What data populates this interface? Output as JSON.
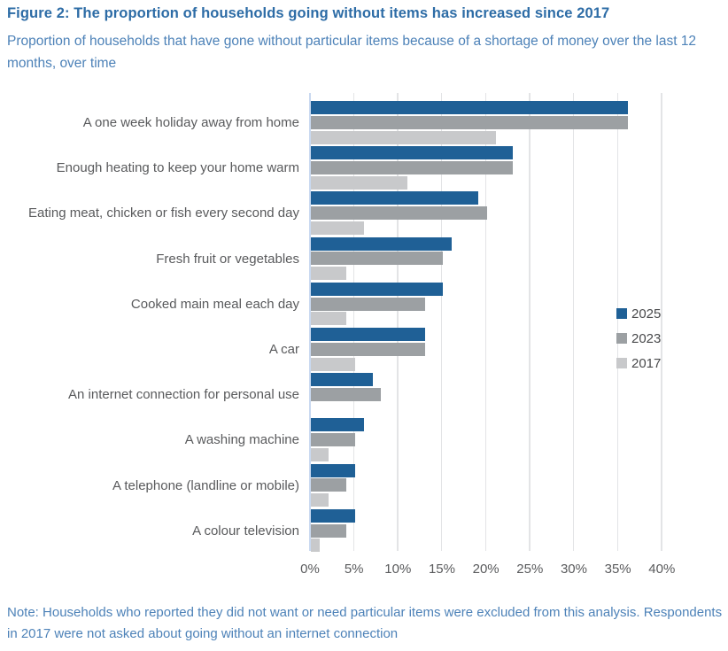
{
  "header": {
    "title": "Figure 2: The proportion of households going without items has increased since 2017",
    "subtitle": "Proportion of households that have gone without particular items because of a shortage of money over the last 12 months, over time"
  },
  "footer": {
    "note": "Note: Households who reported they did not want or need particular items were excluded from this analysis. Respondents in 2017 were not asked about going without an internet connection"
  },
  "chart_data": {
    "type": "bar",
    "orientation": "horizontal",
    "title": "Figure 2: The proportion of households going without items has increased since 2017",
    "subtitle": "Proportion of households that have gone without particular items because of a shortage of money over the last 12 months, over time",
    "categories": [
      "A one week holiday away from home",
      "Enough heating to keep your home warm",
      "Eating meat, chicken or fish every second day",
      "Fresh fruit or vegetables",
      "Cooked main meal each day",
      "A car",
      "An internet connection for personal use",
      "A washing machine",
      "A telephone (landline or mobile)",
      "A colour television"
    ],
    "series": [
      {
        "name": "2025",
        "color": "#1F6096",
        "values": [
          36,
          23,
          19,
          16,
          15,
          13,
          7,
          6,
          5,
          5
        ]
      },
      {
        "name": "2023",
        "color": "#9CA0A3",
        "values": [
          36,
          23,
          20,
          15,
          13,
          13,
          8,
          5,
          4,
          4
        ]
      },
      {
        "name": "2017",
        "color": "#C8C9CB",
        "values": [
          21,
          11,
          6,
          4,
          4,
          5,
          null,
          2,
          2,
          1
        ]
      }
    ],
    "x_axis": {
      "range": [
        0,
        40
      ],
      "ticks": [
        0,
        5,
        10,
        15,
        20,
        25,
        30,
        35,
        40
      ],
      "tick_labels": [
        "0%",
        "5%",
        "10%",
        "15%",
        "20%",
        "25%",
        "30%",
        "35%",
        "40%"
      ],
      "unit": "percent"
    },
    "grid": true,
    "legend": {
      "position": "middle-right",
      "entries": [
        "2025",
        "2023",
        "2017"
      ]
    },
    "notes": "Respondents in 2017 were not asked about going without an internet connection, so that series has no bar for that category."
  }
}
